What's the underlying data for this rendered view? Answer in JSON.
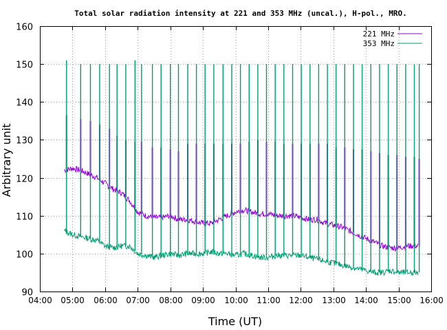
{
  "chart_data": {
    "type": "line",
    "title": "Total solar radiation intensity at 221 and 353 MHz (uncal.), H-pol., MRO.",
    "xlabel": "Time (UT)",
    "ylabel": "Arbitrary unit",
    "xlim": [
      "04:00",
      "16:00"
    ],
    "ylim": [
      90,
      160
    ],
    "x_ticks": [
      "04:00",
      "05:00",
      "06:00",
      "07:00",
      "08:00",
      "09:00",
      "10:00",
      "11:00",
      "12:00",
      "13:00",
      "14:00",
      "15:00",
      "16:00"
    ],
    "y_ticks": [
      "90",
      "100",
      "110",
      "120",
      "130",
      "140",
      "150",
      "160"
    ],
    "grid": true,
    "legend_position": "top-right",
    "series": [
      {
        "name": "221 MHz",
        "color": "#9400d3",
        "x": [
          "04:45",
          "05:00",
          "05:15",
          "05:30",
          "05:45",
          "06:00",
          "06:15",
          "06:30",
          "06:45",
          "07:00",
          "07:15",
          "07:30",
          "07:45",
          "08:00",
          "08:15",
          "08:30",
          "08:45",
          "09:00",
          "09:15",
          "09:30",
          "09:45",
          "10:00",
          "10:15",
          "10:30",
          "10:45",
          "11:00",
          "11:15",
          "11:30",
          "11:45",
          "12:00",
          "12:15",
          "12:30",
          "12:45",
          "13:00",
          "13:15",
          "13:30",
          "13:45",
          "14:00",
          "14:15",
          "14:30",
          "14:45",
          "15:00",
          "15:15",
          "15:30",
          "15:36"
        ],
        "values": [
          122,
          122.5,
          122,
          121,
          120,
          118.5,
          117,
          116,
          114,
          111,
          110,
          109.5,
          109.5,
          110,
          109,
          109,
          108.5,
          108,
          108,
          109,
          110,
          111,
          111.5,
          111,
          110.5,
          110.5,
          110,
          110,
          110,
          109.5,
          109,
          109,
          108,
          107.5,
          107,
          106,
          105,
          104,
          103,
          102,
          101.5,
          101.5,
          102,
          102,
          102
        ],
        "calibration_times": [
          "04:49",
          "05:15",
          "05:33",
          "05:50",
          "06:08",
          "06:22",
          "06:38",
          "06:55",
          "07:07",
          "07:27",
          "07:43",
          "08:00",
          "08:15",
          "08:32",
          "08:48",
          "09:04",
          "09:20",
          "09:37",
          "09:53",
          "10:09",
          "10:25",
          "10:41",
          "10:57",
          "11:13",
          "11:29",
          "11:45",
          "12:01",
          "12:17",
          "12:33",
          "12:49",
          "13:05",
          "13:21",
          "13:37",
          "13:53",
          "14:09",
          "14:25",
          "14:41",
          "14:57",
          "15:13",
          "15:29",
          "15:38"
        ],
        "calibration_levels": [
          136.5,
          135.5,
          135,
          134,
          133,
          131,
          130,
          129.5,
          129.5,
          128,
          128,
          127.5,
          127,
          129,
          129,
          129,
          129,
          129,
          129,
          129,
          129.5,
          130,
          129.5,
          129.5,
          129,
          129,
          129,
          129,
          129,
          129,
          128,
          128,
          127.5,
          127.5,
          127,
          126.5,
          126,
          126,
          125.5,
          125.5,
          125
        ]
      },
      {
        "name": "353 MHz",
        "color": "#009e73",
        "x": [
          "04:45",
          "05:00",
          "05:15",
          "05:30",
          "05:45",
          "06:00",
          "06:15",
          "06:30",
          "06:45",
          "07:00",
          "07:15",
          "07:30",
          "07:45",
          "08:00",
          "08:15",
          "08:30",
          "08:45",
          "09:00",
          "09:15",
          "09:30",
          "09:45",
          "10:00",
          "10:15",
          "10:30",
          "10:45",
          "11:00",
          "11:15",
          "11:30",
          "11:45",
          "12:00",
          "12:15",
          "12:30",
          "12:45",
          "13:00",
          "13:15",
          "13:30",
          "13:45",
          "14:00",
          "14:15",
          "14:30",
          "14:45",
          "15:00",
          "15:15",
          "15:30",
          "15:36"
        ],
        "values": [
          106,
          105,
          104.5,
          104,
          103.5,
          102,
          101.5,
          102,
          102,
          100,
          99.5,
          99,
          99.5,
          100,
          99.5,
          100,
          100,
          100,
          100.5,
          100,
          100,
          99.5,
          100,
          99.5,
          99,
          99,
          99.5,
          99.5,
          99.5,
          99.5,
          99,
          98.5,
          98,
          97.5,
          97,
          96.5,
          96,
          95.5,
          95,
          95,
          95.5,
          95,
          95,
          95,
          95
        ],
        "calibration_times": [
          "04:49",
          "05:15",
          "05:33",
          "05:50",
          "06:08",
          "06:22",
          "06:38",
          "06:55",
          "07:07",
          "07:27",
          "07:43",
          "08:00",
          "08:15",
          "08:32",
          "08:48",
          "09:04",
          "09:20",
          "09:37",
          "09:53",
          "10:09",
          "10:25",
          "10:41",
          "10:57",
          "11:13",
          "11:29",
          "11:45",
          "12:01",
          "12:17",
          "12:33",
          "12:49",
          "13:05",
          "13:21",
          "13:37",
          "13:53",
          "14:09",
          "14:25",
          "14:41",
          "14:57",
          "15:13",
          "15:29",
          "15:38"
        ],
        "calibration_levels": [
          151,
          150,
          150,
          150,
          150,
          150,
          150,
          151,
          150,
          150,
          150,
          150,
          150,
          150,
          150,
          150,
          150,
          150,
          150,
          150,
          150,
          150,
          150,
          150,
          150,
          150,
          150,
          150,
          150,
          150,
          150,
          150,
          150,
          150,
          150,
          150,
          150,
          150,
          150,
          150,
          150
        ]
      }
    ]
  }
}
